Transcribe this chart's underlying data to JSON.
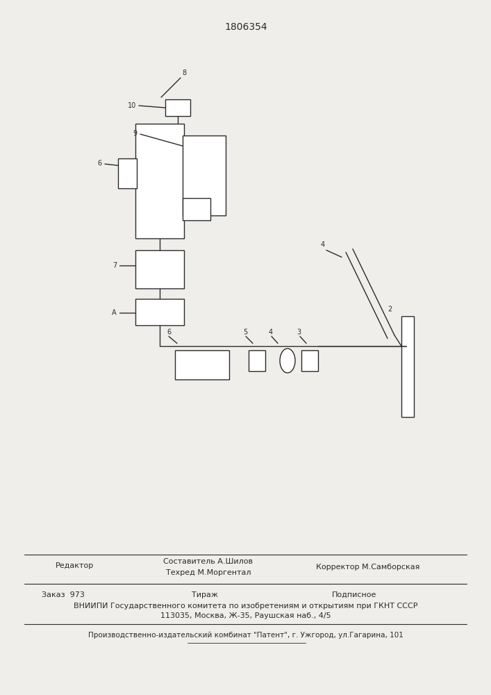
{
  "title": "1806354",
  "title_fontsize": 10,
  "bg_color": "#f0eeea",
  "line_color": "#2a2a2a",
  "line_width": 1.0,
  "footer": {
    "editor": "Редактор",
    "composer": "Составитель А.Шилов",
    "tech": "Техред М.Моргентал",
    "corrector": "Корректор М.Самборская",
    "order": "Заказ  973",
    "tirazh": "Тираж",
    "podpisnoe": "Подписное",
    "vniipii": "ВНИИПИ Государственного комитета по изобретениям и открытиям при ГКНТ СССР",
    "address": "113035, Москва, Ж-35, Раушская наб., 4/5",
    "factory": "Производственно-издательский комбинат \"Патент\", г. Ужгород, ул.Гагарина, 101"
  }
}
